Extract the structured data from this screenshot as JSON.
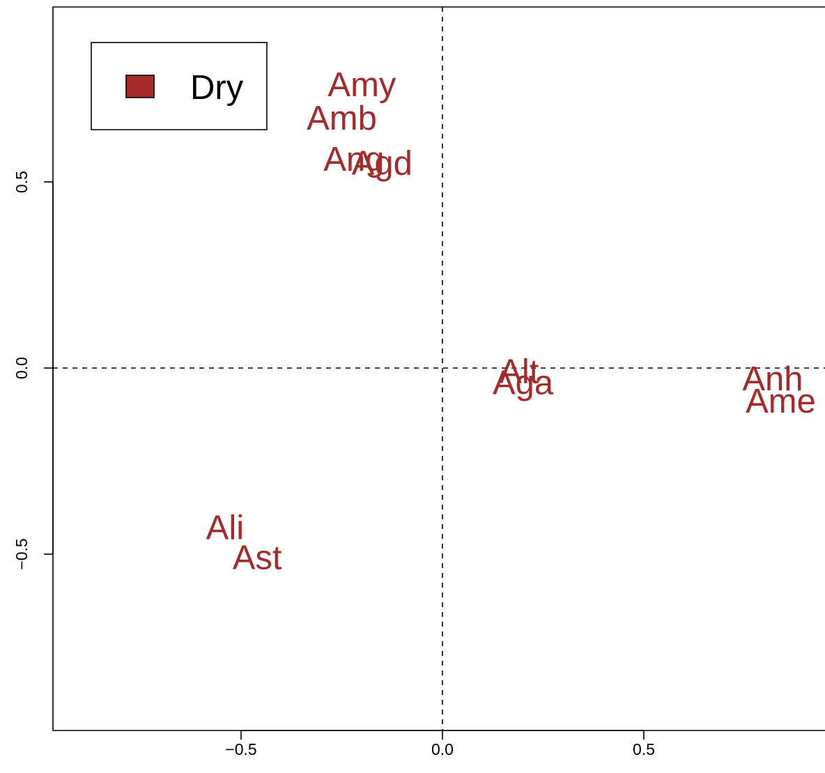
{
  "colors": {
    "dry": "#A52A2A",
    "axis": "#000000",
    "background": "#FFFFFF"
  },
  "legend": {
    "placement": "top-left",
    "entries": [
      {
        "label": "Dry",
        "color": "#A52A2A"
      }
    ]
  },
  "chart_data": {
    "type": "scatter",
    "title": "",
    "xlabel": "",
    "ylabel": "",
    "xlim": [
      -0.97,
      0.95
    ],
    "ylim": [
      -0.98,
      0.98
    ],
    "grid": false,
    "reference_lines": {
      "x": 0,
      "y": 0,
      "style": "dashed"
    },
    "x_ticks": [
      -0.5,
      0.0,
      0.5
    ],
    "x_tick_labels": [
      "−0.5",
      "0.0",
      "0.5"
    ],
    "y_ticks": [
      -0.5,
      0.0,
      0.5
    ],
    "y_tick_labels": [
      "−0.5",
      "0.0",
      "0.5"
    ],
    "series": [
      {
        "name": "Dry",
        "color": "#A52A2A",
        "points": [
          {
            "label": "Amy",
            "x": -0.2,
            "y": 0.76
          },
          {
            "label": "Amb",
            "x": -0.25,
            "y": 0.67
          },
          {
            "label": "Ang",
            "x": -0.22,
            "y": 0.56
          },
          {
            "label": "Agd",
            "x": -0.15,
            "y": 0.55
          },
          {
            "label": "Alt",
            "x": 0.19,
            "y": -0.01
          },
          {
            "label": "Aga",
            "x": 0.2,
            "y": -0.04
          },
          {
            "label": "Anh",
            "x": 0.82,
            "y": -0.03
          },
          {
            "label": "Ame",
            "x": 0.84,
            "y": -0.09
          },
          {
            "label": "Ali",
            "x": -0.54,
            "y": -0.43
          },
          {
            "label": "Ast",
            "x": -0.46,
            "y": -0.51
          }
        ]
      }
    ]
  }
}
